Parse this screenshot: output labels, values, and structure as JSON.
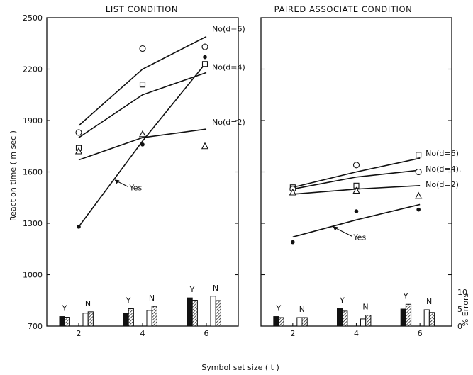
{
  "figure": {
    "xlabel": "Symbol set size ( t )",
    "ylabel": "Reaction time ( m sec )",
    "y2label": "% Errors"
  },
  "chart_data": [
    {
      "type": "line",
      "title": "LIST CONDITION",
      "xlabel": "Symbol set size ( t )",
      "ylabel": "Reaction time ( m sec )",
      "x": [
        2,
        4,
        6
      ],
      "xlim": [
        1,
        7
      ],
      "ylim": [
        700,
        2500
      ],
      "yticks": [
        700,
        1000,
        1300,
        1600,
        1900,
        2200,
        2500
      ],
      "grid": false,
      "series": [
        {
          "name": "No(d=6)",
          "marker": "circle",
          "points": [
            1830,
            2320,
            2330
          ],
          "fit": [
            1870,
            2200,
            2390
          ]
        },
        {
          "name": "No(d=4)",
          "marker": "square",
          "points": [
            1740,
            2110,
            2230
          ],
          "fit": [
            1800,
            2050,
            2180
          ]
        },
        {
          "name": "No(d=2)",
          "marker": "triangle",
          "points": [
            1720,
            1820,
            1750
          ],
          "fit": [
            1670,
            1800,
            1850
          ]
        },
        {
          "name": "Yes",
          "marker": "filled-circle",
          "points": [
            1280,
            1760,
            2270
          ],
          "fit": [
            1280,
            1780,
            2240
          ]
        }
      ],
      "errors": {
        "ylabel": "% Errors",
        "ylim": [
          0,
          10
        ],
        "series": [
          "Yes",
          "No"
        ],
        "groups": [
          {
            "x": 2,
            "Y": [
              2.8,
              2.6
            ],
            "N": [
              3.8,
              4.2
            ]
          },
          {
            "x": 4,
            "Y": [
              3.7,
              5.1
            ],
            "N": [
              4.6,
              5.8
            ]
          },
          {
            "x": 6,
            "Y": [
              8.3,
              7.6
            ],
            "N": [
              8.8,
              7.5
            ]
          }
        ]
      }
    },
    {
      "type": "line",
      "title": "PAIRED ASSOCIATE CONDITION",
      "xlabel": "Symbol set size ( t )",
      "ylabel": "% Errors",
      "x": [
        2,
        4,
        6
      ],
      "xlim": [
        1,
        7
      ],
      "ylim": [
        700,
        2500
      ],
      "y2ticks": [
        0,
        5,
        10
      ],
      "grid": false,
      "series": [
        {
          "name": "No(d=6)",
          "marker": "square",
          "points": [
            1510,
            1520,
            1700
          ],
          "fit": [
            1510,
            1600,
            1680
          ]
        },
        {
          "name": "No(d=4).",
          "marker": "circle",
          "points": [
            1500,
            1640,
            1600
          ],
          "fit": [
            1500,
            1570,
            1610
          ]
        },
        {
          "name": "No(d=2)",
          "marker": "triangle",
          "points": [
            1480,
            1490,
            1460
          ],
          "fit": [
            1470,
            1500,
            1520
          ]
        },
        {
          "name": "Yes",
          "marker": "filled-circle",
          "points": [
            1190,
            1370,
            1380
          ],
          "fit": [
            1220,
            1320,
            1410
          ]
        }
      ],
      "errors": {
        "ylabel": "% Errors",
        "ylim": [
          0,
          10
        ],
        "series": [
          "Yes",
          "No"
        ],
        "groups": [
          {
            "x": 2,
            "Y": [
              2.8,
              2.5
            ],
            "N": [
              2.5,
              2.5
            ]
          },
          {
            "x": 4,
            "Y": [
              5.1,
              4.4
            ],
            "N": [
              2.1,
              3.2
            ]
          },
          {
            "x": 6,
            "Y": [
              5.0,
              6.4
            ],
            "N": [
              4.8,
              4.0
            ]
          }
        ]
      }
    }
  ]
}
